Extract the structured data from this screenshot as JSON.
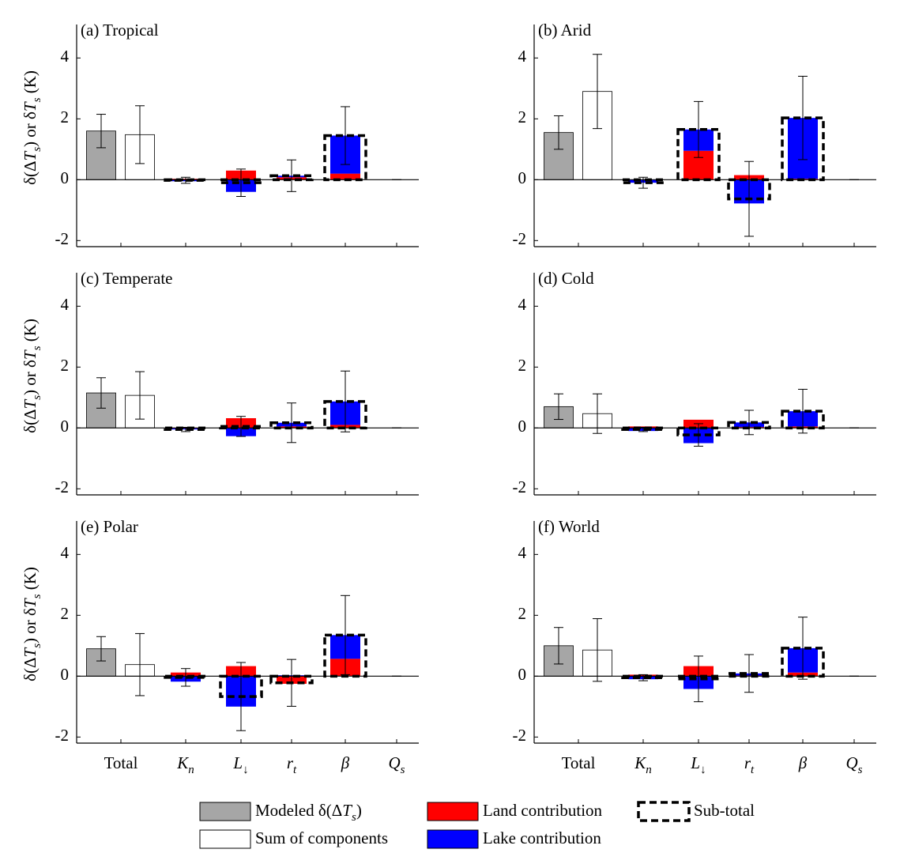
{
  "chart_data": {
    "type": "bar",
    "y_label": [
      "δ(Δ",
      "T",
      "s",
      ") or δ",
      "T",
      "s",
      " (K)"
    ],
    "categories": [
      {
        "base": "Total"
      },
      {
        "base": "K",
        "sub": "n"
      },
      {
        "base": "L",
        "sub": "↓"
      },
      {
        "base": "r",
        "sub": "t"
      },
      {
        "base": "β"
      },
      {
        "base": "Q",
        "sub": "s"
      }
    ],
    "ylim": [
      -2.2,
      5.1
    ],
    "yticks": [
      -2,
      0,
      2,
      4
    ],
    "series": [
      {
        "name": [
          "Modeled δ(Δ",
          "T",
          "s",
          ")"
        ],
        "color": "#a6a6a6"
      },
      {
        "name": [
          "Sum of components"
        ],
        "color": "#ffffff"
      },
      {
        "name": [
          "Land contribution"
        ],
        "color": "#ff0000"
      },
      {
        "name": [
          "Lake contribution"
        ],
        "color": "#0000ff"
      },
      {
        "name": [
          "Sub-total"
        ],
        "color": "#000000"
      }
    ],
    "panels": [
      {
        "title": "(a) Tropical",
        "modeled": {
          "value": 1.6,
          "error": 0.55
        },
        "sum": {
          "value": 1.48,
          "error": 0.95
        },
        "land": [
          0.03,
          0.3,
          0.08,
          0.2,
          0
        ],
        "lake": [
          -0.05,
          -0.4,
          0.05,
          1.25,
          0
        ],
        "subtotal": [
          -0.02,
          -0.1,
          0.13,
          1.45,
          0
        ],
        "error": [
          0.1,
          0.45,
          0.52,
          0.95,
          0
        ]
      },
      {
        "title": "(b) Arid",
        "modeled": {
          "value": 1.55,
          "error": 0.55
        },
        "sum": {
          "value": 2.9,
          "error": 1.22
        },
        "land": [
          0,
          0.95,
          0.15,
          0.03,
          0
        ],
        "lake": [
          -0.1,
          0.7,
          -0.78,
          2.0,
          0
        ],
        "subtotal": [
          -0.1,
          1.65,
          -0.63,
          2.03,
          0
        ],
        "error": [
          0.18,
          0.92,
          1.23,
          1.37,
          0
        ]
      },
      {
        "title": "(c) Temperate",
        "modeled": {
          "value": 1.15,
          "error": 0.5
        },
        "sum": {
          "value": 1.07,
          "error": 0.78
        },
        "land": [
          -0.02,
          0.32,
          0.05,
          0.1,
          0
        ],
        "lake": [
          -0.03,
          -0.27,
          0.12,
          0.77,
          0
        ],
        "subtotal": [
          -0.05,
          0.05,
          0.17,
          0.87,
          0
        ],
        "error": [
          0.07,
          0.33,
          0.65,
          1.0,
          0
        ]
      },
      {
        "title": "(d) Cold",
        "modeled": {
          "value": 0.7,
          "error": 0.42
        },
        "sum": {
          "value": 0.47,
          "error": 0.65
        },
        "land": [
          0.05,
          0.27,
          0.03,
          0.05,
          0
        ],
        "lake": [
          -0.1,
          -0.5,
          0.15,
          0.5,
          0
        ],
        "subtotal": [
          -0.05,
          -0.23,
          0.18,
          0.55,
          0
        ],
        "error": [
          0.07,
          0.37,
          0.4,
          0.72,
          0
        ]
      },
      {
        "title": "(e) Polar",
        "modeled": {
          "value": 0.9,
          "error": 0.4
        },
        "sum": {
          "value": 0.38,
          "error": 1.02
        },
        "land": [
          0.12,
          0.33,
          -0.25,
          0.57,
          0
        ],
        "lake": [
          -0.18,
          -1.0,
          0.03,
          0.78,
          0
        ],
        "subtotal": [
          -0.04,
          -0.67,
          -0.22,
          1.35,
          0
        ],
        "error": [
          0.29,
          1.12,
          0.77,
          1.3,
          0
        ]
      },
      {
        "title": "(f) World",
        "modeled": {
          "value": 1.0,
          "error": 0.6
        },
        "sum": {
          "value": 0.86,
          "error": 1.03
        },
        "land": [
          0.05,
          0.33,
          0.02,
          0.12,
          0
        ],
        "lake": [
          -0.1,
          -0.42,
          0.07,
          0.8,
          0
        ],
        "subtotal": [
          -0.05,
          -0.09,
          0.09,
          0.92,
          0
        ],
        "error": [
          0.1,
          0.75,
          0.62,
          1.02,
          0
        ]
      }
    ]
  }
}
